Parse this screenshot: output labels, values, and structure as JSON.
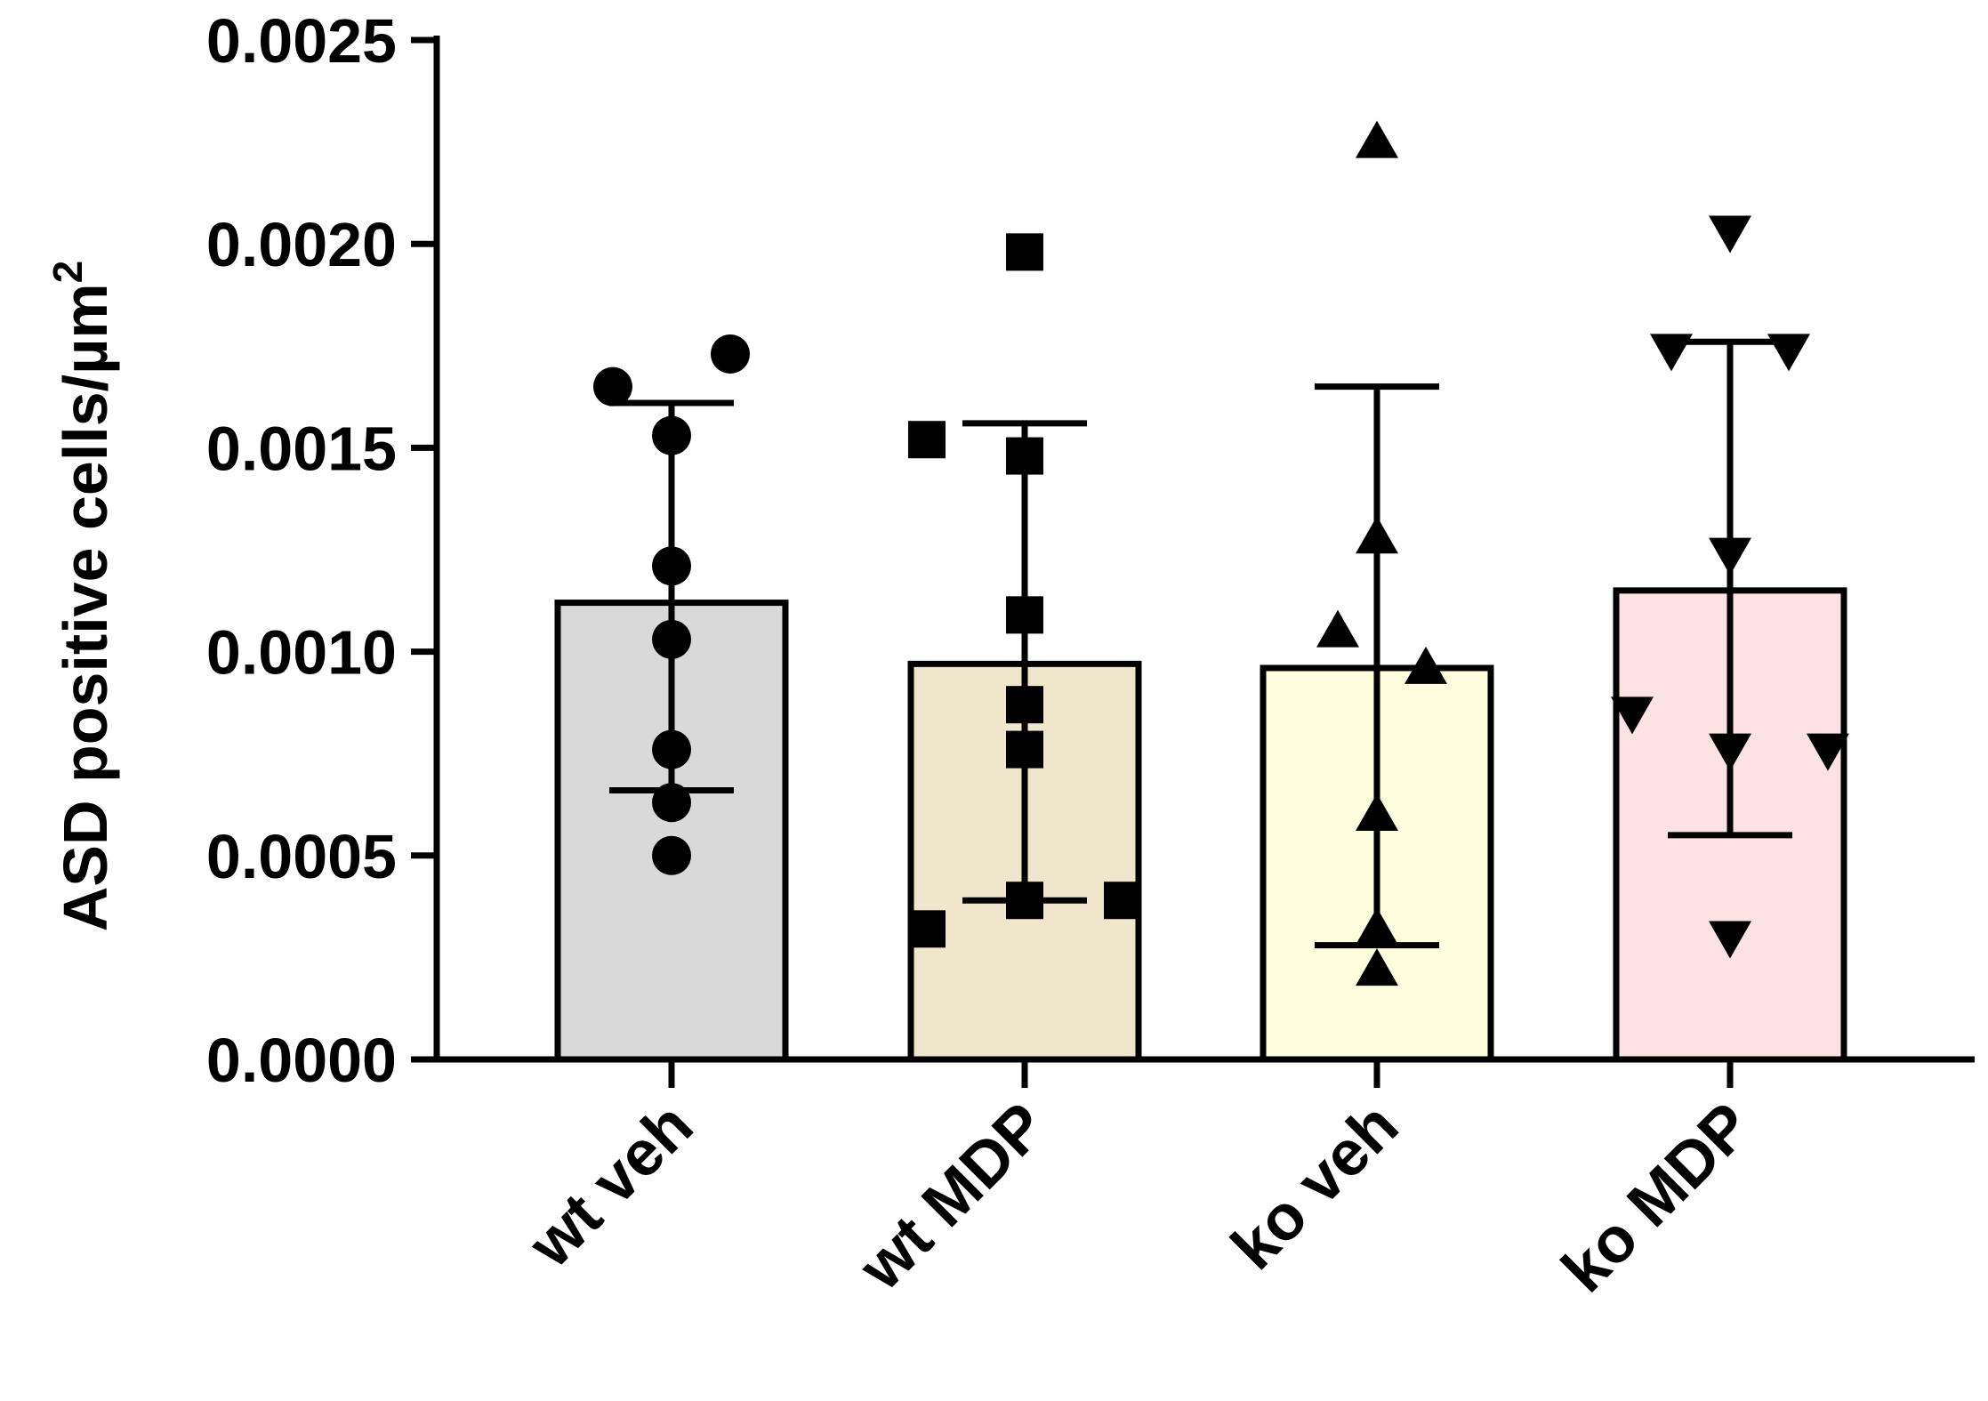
{
  "chart_data": {
    "type": "bar",
    "title": "",
    "xlabel": "",
    "ylabel": "ASD positive cells/µm",
    "ylabel_superscript": "2",
    "ylim": [
      0,
      0.0025
    ],
    "yticks": [
      {
        "value": 0,
        "label": "0.0000"
      },
      {
        "value": 0.0005,
        "label": "0.0005"
      },
      {
        "value": 0.001,
        "label": "0.0010"
      },
      {
        "value": 0.0015,
        "label": "0.0015"
      },
      {
        "value": 0.002,
        "label": "0.0020"
      },
      {
        "value": 0.0025,
        "label": "0.0025"
      }
    ],
    "categories": [
      "wt veh",
      "wt MDP",
      "ko veh",
      "ko MDP"
    ],
    "values": [
      0.00112,
      0.00097,
      0.00096,
      0.00115
    ],
    "error_low": [
      0.00066,
      0.00039,
      0.00028,
      0.00055
    ],
    "error_high": [
      0.00161,
      0.00156,
      0.00165,
      0.00176
    ],
    "colors": [
      "#d9d9d9",
      "#efe6cb",
      "#fdfddd",
      "#fde2e4"
    ],
    "markers": [
      "circle",
      "square",
      "triangle-up",
      "triangle-down"
    ],
    "points": [
      [
        {
          "value": 0.00173,
          "offset": 0.6
        },
        {
          "value": 0.00165,
          "offset": -0.6
        },
        {
          "value": 0.00153,
          "offset": 0
        },
        {
          "value": 0.00121,
          "offset": 0
        },
        {
          "value": 0.00103,
          "offset": 0
        },
        {
          "value": 0.00076,
          "offset": 0
        },
        {
          "value": 0.00063,
          "offset": 0
        },
        {
          "value": 0.0005,
          "offset": 0
        }
      ],
      [
        {
          "value": 0.00198,
          "offset": 0
        },
        {
          "value": 0.00152,
          "offset": -1
        },
        {
          "value": 0.00148,
          "offset": 0
        },
        {
          "value": 0.00109,
          "offset": 0
        },
        {
          "value": 0.00087,
          "offset": 0
        },
        {
          "value": 0.00076,
          "offset": 0
        },
        {
          "value": 0.00039,
          "offset": 0
        },
        {
          "value": 0.00039,
          "offset": 1
        },
        {
          "value": 0.00032,
          "offset": -1
        }
      ],
      [
        {
          "value": 0.00225,
          "offset": 0
        },
        {
          "value": 0.00128,
          "offset": 0
        },
        {
          "value": 0.00105,
          "offset": -0.4
        },
        {
          "value": 0.00096,
          "offset": 0.5
        },
        {
          "value": 0.0006,
          "offset": 0
        },
        {
          "value": 0.00032,
          "offset": 0
        },
        {
          "value": 0.00022,
          "offset": 0
        }
      ],
      [
        {
          "value": 0.00203,
          "offset": 0
        },
        {
          "value": 0.00174,
          "offset": -0.6
        },
        {
          "value": 0.00174,
          "offset": 0.6
        },
        {
          "value": 0.00124,
          "offset": 0
        },
        {
          "value": 0.00085,
          "offset": -1
        },
        {
          "value": 0.00076,
          "offset": 0
        },
        {
          "value": 0.00076,
          "offset": 1
        },
        {
          "value": 0.0003,
          "offset": 0
        }
      ]
    ]
  }
}
